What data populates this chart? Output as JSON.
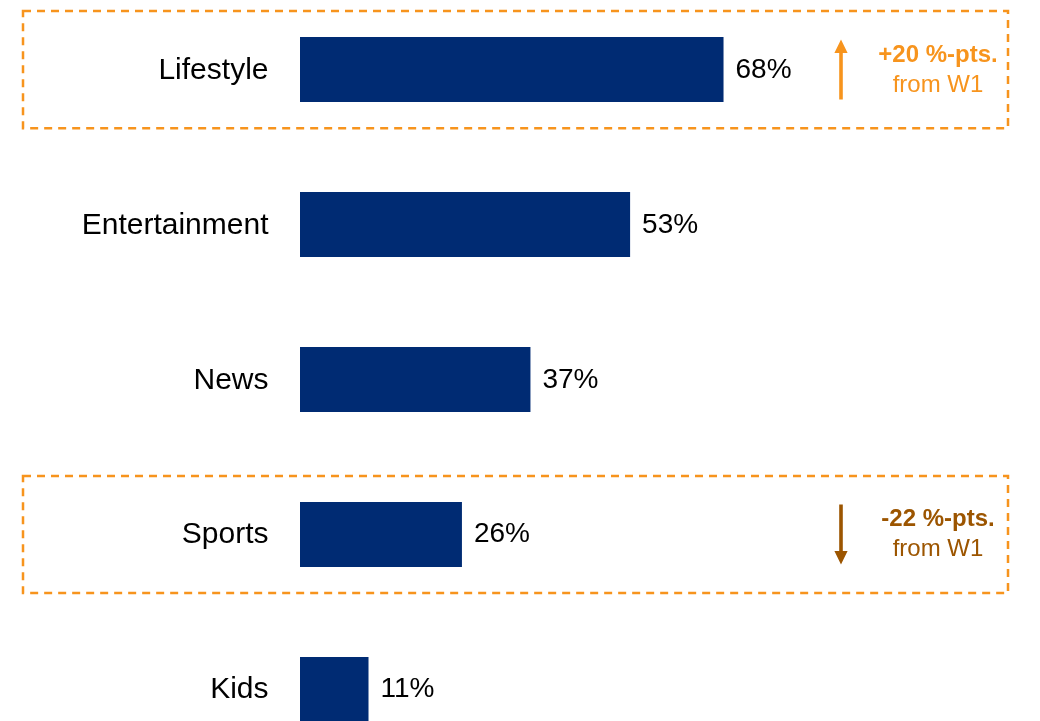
{
  "chart_data": {
    "type": "bar",
    "orientation": "horizontal",
    "categories": [
      "Lifestyle",
      "Entertainment",
      "News",
      "Sports",
      "Kids"
    ],
    "values": [
      68,
      53,
      37,
      26,
      11
    ],
    "color": "#002b73",
    "value_labels": [
      "68%",
      "53%",
      "37%",
      "26%",
      "11%"
    ],
    "grid": false,
    "annotations": [
      "+20 %-pts.",
      "from W1",
      "-22 %-pts.",
      "from W1"
    ]
  }
}
